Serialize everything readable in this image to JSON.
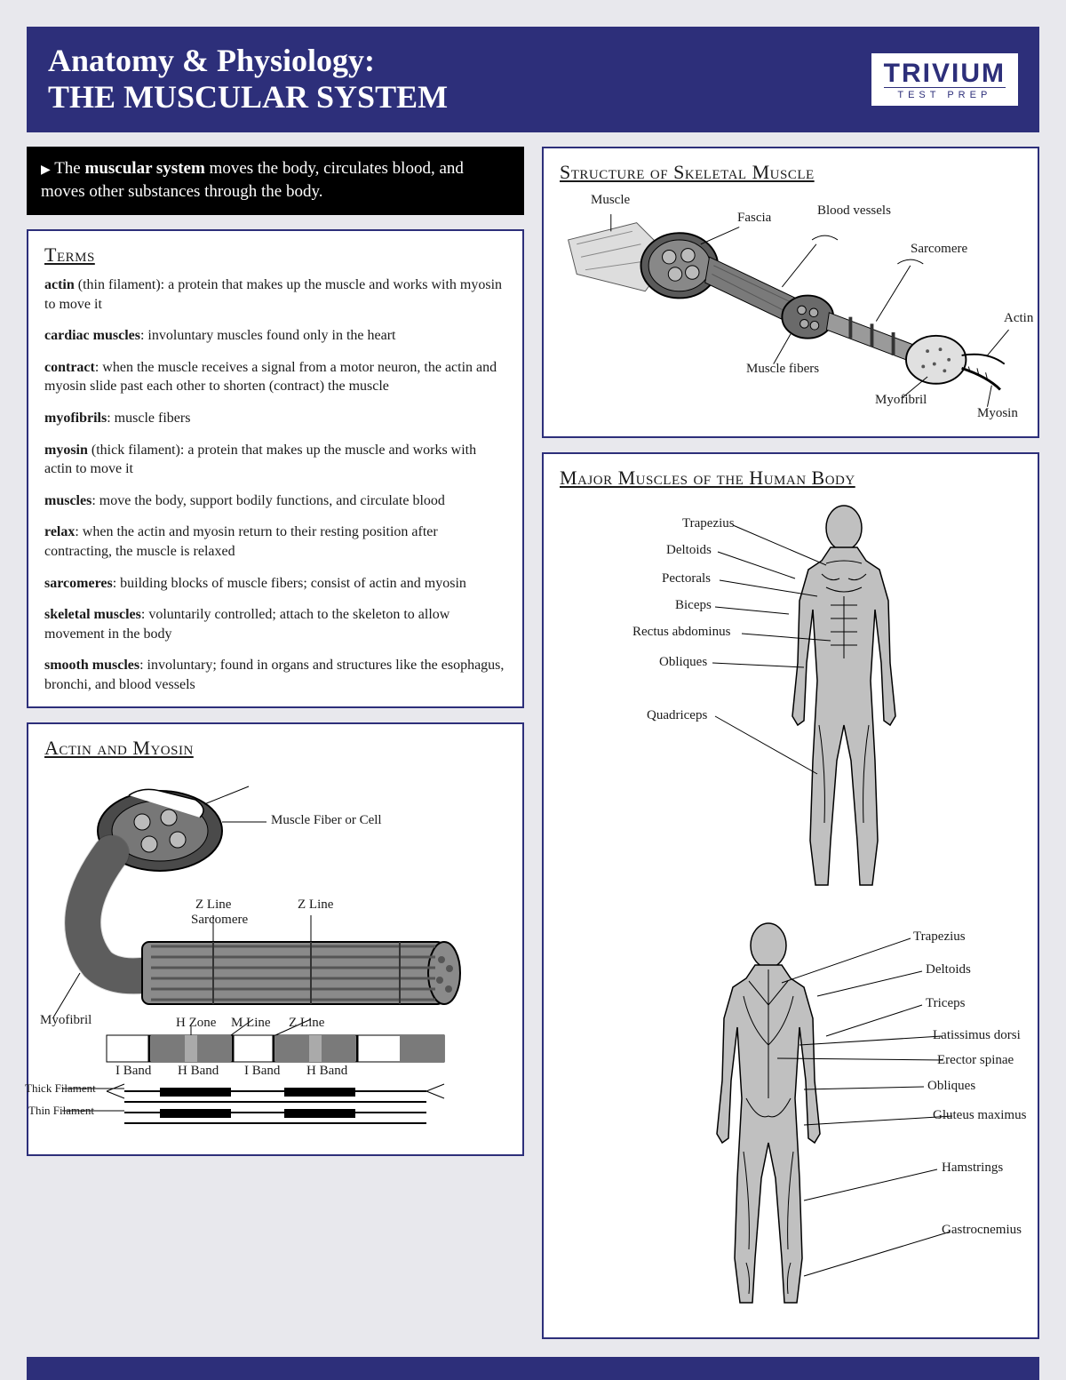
{
  "colors": {
    "page_bg": "#e8e8ed",
    "brand": "#2d2f7a",
    "black": "#000000",
    "white": "#ffffff",
    "gray_fill": "#bfbfbf",
    "gray_dark": "#6e6e6e",
    "diagram_stroke": "#1a1a1a"
  },
  "header": {
    "title_line1": "Anatomy & Physiology:",
    "title_line2": "THE MUSCULAR SYSTEM",
    "logo_main": "TRIVIUM",
    "logo_sub": "TEST PREP"
  },
  "intro": {
    "text_prefix": "The ",
    "text_bold": "muscular system",
    "text_suffix": " moves the body, circulates blood, and moves other substances through the body."
  },
  "terms_title": "Terms",
  "terms": [
    {
      "term": "actin",
      "note": " (thin filament)",
      "def": ": a protein that makes up the muscle and works with myosin to move it"
    },
    {
      "term": "cardiac muscles",
      "note": "",
      "def": ": involuntary muscles found only in the heart"
    },
    {
      "term": "contract",
      "note": "",
      "def": ": when the muscle receives a signal from a motor neuron, the actin and myosin slide past each other to shorten (contract) the muscle"
    },
    {
      "term": "myofibrils",
      "note": "",
      "def": ": muscle fibers"
    },
    {
      "term": "myosin",
      "note": " (thick filament)",
      "def": ": a protein that makes up the muscle and works with actin to move it"
    },
    {
      "term": "muscles",
      "note": "",
      "def": ": move the body, support bodily functions, and circulate blood"
    },
    {
      "term": "relax",
      "note": "",
      "def": ": when the actin and myosin return to their resting position after contracting, the muscle is relaxed"
    },
    {
      "term": "sarcomeres",
      "note": "",
      "def": ": building blocks of muscle fibers; consist of actin and myosin"
    },
    {
      "term": "skeletal muscles",
      "note": "",
      "def": ": voluntarily controlled; attach to the skeleton to allow movement in the body"
    },
    {
      "term": "smooth muscles",
      "note": "",
      "def": ": involuntary; found in organs and structures like the esophagus, bronchi, and blood vessels"
    }
  ],
  "actin_title": "Actin and Myosin",
  "actin_labels": {
    "muscle_fiber": "Muscle Fiber or Cell",
    "zline": "Z Line",
    "sarcomere": "Sarcomere",
    "myofibril": "Myofibril",
    "hzone": "H Zone",
    "mline": "M Line",
    "iband": "I Band",
    "hband": "H Band",
    "thick": "Thick Filament",
    "thin": "Thin Filament"
  },
  "structure_title": "Structure of Skeletal Muscle",
  "structure_labels": {
    "muscle": "Muscle",
    "fascia": "Fascia",
    "blood": "Blood vessels",
    "sarcomere": "Sarcomere",
    "fibers": "Muscle fibers",
    "actin": "Actin",
    "myofibril": "Myofibril",
    "myosin": "Myosin"
  },
  "muscles_title": "Major Muscles of the Human Body",
  "front_labels": [
    "Trapezius",
    "Deltoids",
    "Pectorals",
    "Biceps",
    "Rectus abdominus",
    "Obliques",
    "Quadriceps"
  ],
  "back_labels": [
    "Trapezius",
    "Deltoids",
    "Triceps",
    "Latissimus dorsi",
    "Erector spinae",
    "Obliques",
    "Gluteus maximus",
    "Hamstrings",
    "Gastrocnemius"
  ]
}
